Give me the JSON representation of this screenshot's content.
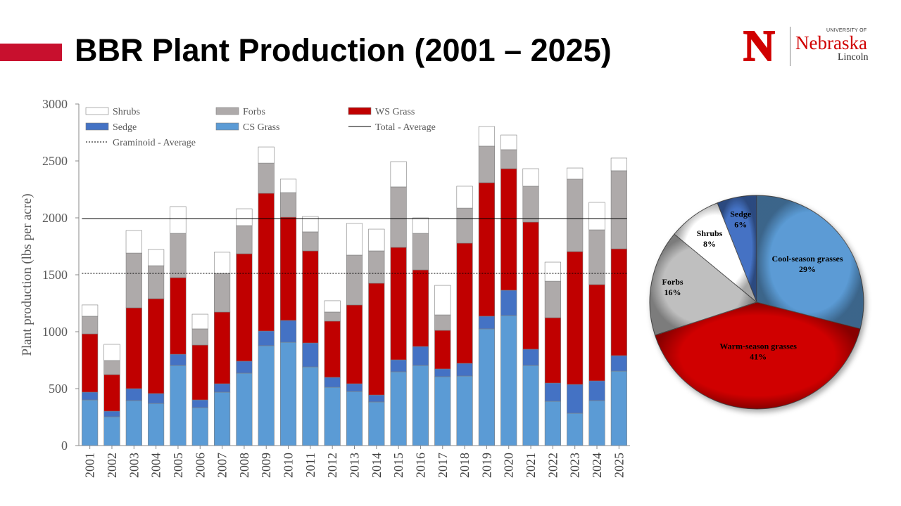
{
  "slide": {
    "title": "BBR Plant Production (2001 – 2025)"
  },
  "logo": {
    "mark": "N",
    "university_of": "UNIVERSITY OF",
    "name": "Nebraska",
    "campus": "Lincoln"
  },
  "chart_data": [
    {
      "type": "bar",
      "stacked": true,
      "title": "",
      "xlabel": "",
      "ylabel": "Plant production (lbs per acre)",
      "ylim": [
        0,
        3000
      ],
      "yticks": [
        0,
        500,
        1000,
        1500,
        2000,
        2500,
        3000
      ],
      "grid": false,
      "legend_placement": "top-left",
      "categories": [
        "2001",
        "2002",
        "2003",
        "2004",
        "2005",
        "2006",
        "2007",
        "2008",
        "2009",
        "2010",
        "2011",
        "2012",
        "2013",
        "2014",
        "2015",
        "2016",
        "2017",
        "2018",
        "2019",
        "2020",
        "2021",
        "2022",
        "2023",
        "2024",
        "2025"
      ],
      "series": [
        {
          "name": "CS Grass",
          "color": "#5b9bd5",
          "values": [
            401,
            253,
            395,
            370,
            704,
            333,
            469,
            636,
            877,
            907,
            691,
            512,
            475,
            383,
            648,
            704,
            605,
            611,
            1025,
            1142,
            704,
            389,
            284,
            395,
            654
          ]
        },
        {
          "name": "Sedge",
          "color": "#4472c4",
          "values": [
            68,
            49,
            105,
            87,
            98,
            68,
            74,
            105,
            129,
            192,
            210,
            87,
            68,
            61,
            105,
            166,
            68,
            111,
            111,
            222,
            142,
            160,
            253,
            173,
            136
          ]
        },
        {
          "name": "WS Grass",
          "color": "#c00000",
          "values": [
            512,
            321,
            710,
            833,
            673,
            482,
            630,
            944,
            1210,
            907,
            809,
            494,
            692,
            982,
            988,
            673,
            339,
            1056,
            1173,
            1068,
            1117,
            574,
            1167,
            846,
            938
          ]
        },
        {
          "name": "Forbs",
          "color": "#aeaaaa",
          "values": [
            155,
            124,
            481,
            290,
            389,
            142,
            339,
            247,
            265,
            216,
            167,
            80,
            438,
            284,
            531,
            321,
            136,
            308,
            321,
            167,
            315,
            321,
            636,
            481,
            686
          ]
        },
        {
          "name": "Shrubs",
          "color": "#ffffff",
          "values": [
            99,
            142,
            198,
            142,
            235,
            129,
            186,
            148,
            142,
            118,
            135,
            99,
            278,
            191,
            222,
            136,
            259,
            192,
            172,
            129,
            154,
            167,
            98,
            241,
            111
          ]
        }
      ],
      "reference_lines": [
        {
          "name": "Total - Average",
          "value": 1994,
          "style": "solid"
        },
        {
          "name": "Graminoid - Average",
          "value": 1512,
          "style": "dashed"
        }
      ],
      "legend_order": [
        "Shrubs",
        "Forbs",
        "WS Grass",
        "Sedge",
        "CS Grass",
        "Total - Average",
        "Graminoid - Average"
      ]
    },
    {
      "type": "pie",
      "slices": [
        {
          "label": "Cool-season grasses",
          "value": 29,
          "pct_label": "29%",
          "color": "#5b9bd5"
        },
        {
          "label": "Warm-season grasses",
          "value": 41,
          "pct_label": "41%",
          "color": "#d00000"
        },
        {
          "label": "Forbs",
          "value": 16,
          "pct_label": "16%",
          "color": "#bfbfbf"
        },
        {
          "label": "Shrubs",
          "value": 8,
          "pct_label": "8%",
          "color": "#ffffff"
        },
        {
          "label": "Sedge",
          "value": 6,
          "pct_label": "6%",
          "color": "#4472c4"
        }
      ]
    }
  ]
}
